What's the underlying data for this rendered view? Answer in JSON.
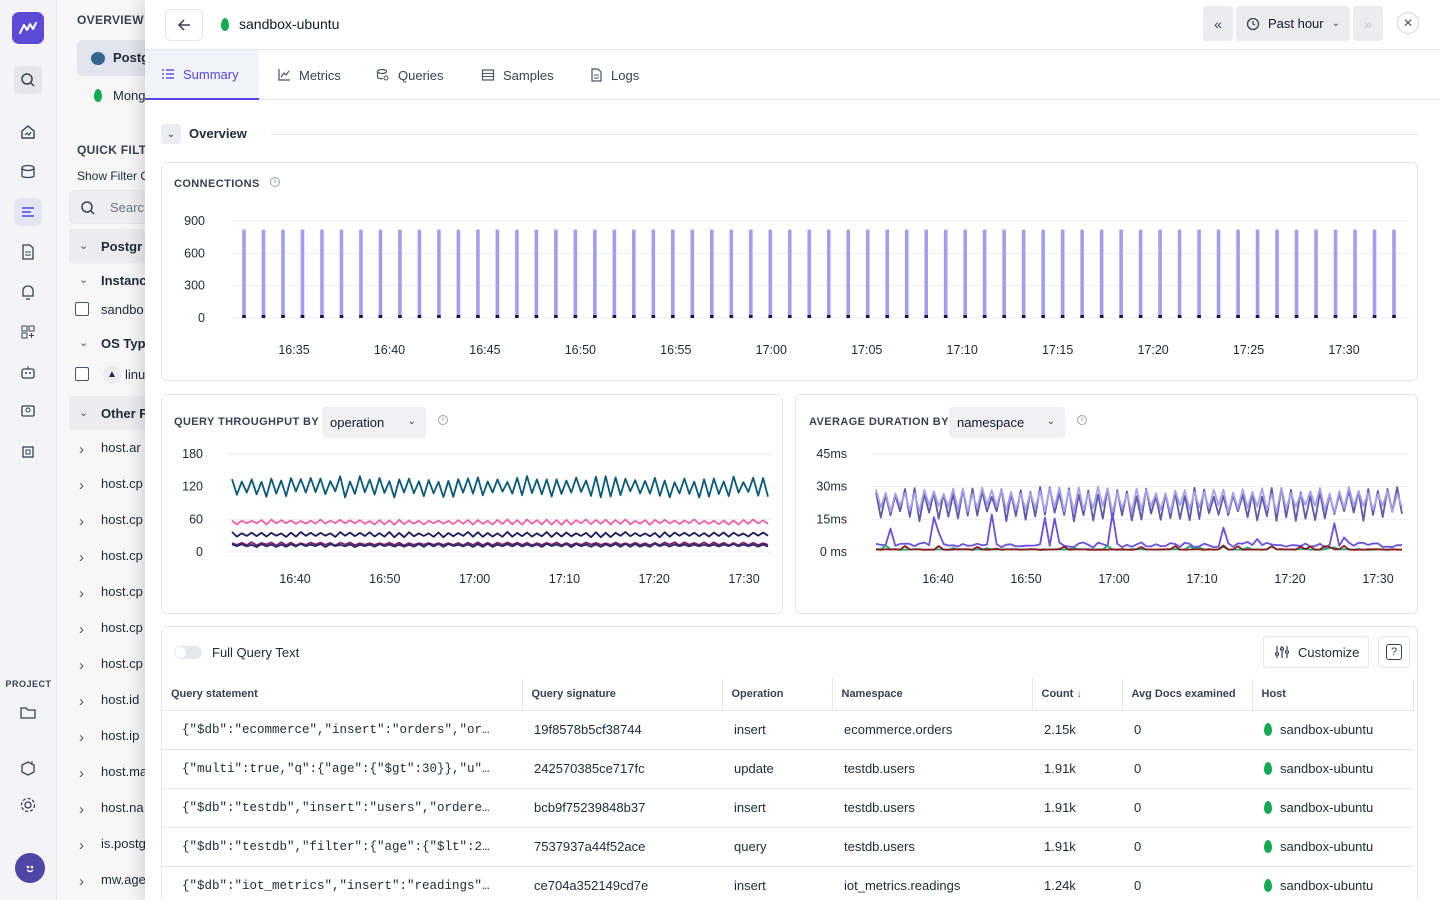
{
  "rail": {
    "project_label": "PROJECT"
  },
  "sidebar": {
    "overview_label": "OVERVIEW",
    "items": [
      "Postgr",
      "Mong"
    ],
    "quick_filters_label": "QUICK FILTE",
    "show_filter_label": "Show Filter C",
    "search_placeholder": "Searc",
    "groups": {
      "postgres": "Postgr",
      "instance": "Instanc",
      "instance_item": "sandbo",
      "os_type": "OS Typ",
      "os_item": "linu",
      "other": "Other F"
    },
    "attributes": [
      "host.ar",
      "host.cp",
      "host.cp",
      "host.cp",
      "host.cp",
      "host.cp",
      "host.cp",
      "host.id",
      "host.ip",
      "host.ma",
      "host.na",
      "is.postg",
      "mw.age"
    ]
  },
  "header": {
    "title": "sandbox-ubuntu",
    "time_range": "Past hour"
  },
  "tabs": [
    "Summary",
    "Metrics",
    "Queries",
    "Samples",
    "Logs"
  ],
  "overview": {
    "label": "Overview"
  },
  "connections": {
    "title": "CONNECTIONS"
  },
  "throughput": {
    "title": "QUERY THROUGHPUT BY",
    "group_by": "operation"
  },
  "duration": {
    "title": "AVERAGE DURATION BY",
    "group_by": "namespace"
  },
  "chart_data": [
    {
      "type": "bar",
      "name": "connections",
      "title": "CONNECTIONS",
      "ylim": [
        0,
        900
      ],
      "yticks": [
        "900",
        "600",
        "300",
        "0"
      ],
      "xticks": [
        "16:35",
        "16:40",
        "16:45",
        "16:50",
        "16:55",
        "17:00",
        "17:05",
        "17:10",
        "17:15",
        "17:20",
        "17:25",
        "17:30"
      ],
      "series": [
        {
          "values_note": "every 30s",
          "value": 820,
          "color": "#a59cf0"
        },
        {
          "value": 12,
          "color": "#16164a"
        }
      ],
      "bar_count": 60
    },
    {
      "type": "line",
      "title": "QUERY THROUGHPUT BY",
      "ylim": [
        0,
        180
      ],
      "yticks": [
        "180",
        "120",
        "60",
        "0"
      ],
      "xticks": [
        "16:40",
        "16:50",
        "17:00",
        "17:10",
        "17:20",
        "17:30"
      ],
      "series": [
        {
          "level": 120,
          "amplitude": 20,
          "color": "#0b5a78"
        },
        {
          "level": 55,
          "amplitude": 5,
          "color": "#ef5fa7"
        },
        {
          "level": 32,
          "amplitude": 5,
          "color": "#1b1b5c"
        },
        {
          "level": 15,
          "amplitude": 3,
          "color": "#7a1f6b"
        },
        {
          "level": 12,
          "amplitude": 3,
          "color": "#2b2b6b"
        }
      ]
    },
    {
      "type": "line",
      "title": "AVERAGE DURATION BY",
      "ylim": [
        0,
        45
      ],
      "yticks": [
        "45ms",
        "30ms",
        "15ms",
        "0 ms"
      ],
      "xticks": [
        "16:40",
        "16:50",
        "17:00",
        "17:10",
        "17:20",
        "17:30"
      ],
      "series": [
        {
          "level": 22,
          "amplitude": 8,
          "color": "#5d5aa8"
        },
        {
          "level": 24,
          "amplitude": 6,
          "color": "#a79ff0"
        },
        {
          "level": 2,
          "amplitude": 8,
          "color": "#6b4fe0"
        },
        {
          "level": 1,
          "amplitude": 1,
          "color": "#1aa884"
        },
        {
          "level": 1,
          "amplitude": 1,
          "color": "#8b1a1a"
        }
      ]
    }
  ],
  "table": {
    "full_query_label": "Full Query Text",
    "customize_label": "Customize",
    "columns": [
      "Query statement",
      "Query signature",
      "Operation",
      "Namespace",
      "Count",
      "Avg Docs examined",
      "Host"
    ],
    "rows": [
      [
        "{\"$db\":\"ecommerce\",\"insert\":\"orders\",\"or…",
        "19f8578b5cf38744",
        "insert",
        "ecommerce.orders",
        "2.15k",
        "0",
        "sandbox-ubuntu"
      ],
      [
        "{\"multi\":true,\"q\":{\"age\":{\"$gt\":30}},\"u\"…",
        "242570385ce717fc",
        "update",
        "testdb.users",
        "1.91k",
        "0",
        "sandbox-ubuntu"
      ],
      [
        "{\"$db\":\"testdb\",\"insert\":\"users\",\"ordere…",
        "bcb9f75239848b37",
        "insert",
        "testdb.users",
        "1.91k",
        "0",
        "sandbox-ubuntu"
      ],
      [
        "{\"$db\":\"testdb\",\"filter\":{\"age\":{\"$lt\":2…",
        "7537937a44f52ace",
        "query",
        "testdb.users",
        "1.91k",
        "0",
        "sandbox-ubuntu"
      ],
      [
        "{\"$db\":\"iot_metrics\",\"insert\":\"readings\"…",
        "ce704a352149cd7e",
        "insert",
        "iot_metrics.readings",
        "1.24k",
        "0",
        "sandbox-ubuntu"
      ]
    ]
  }
}
